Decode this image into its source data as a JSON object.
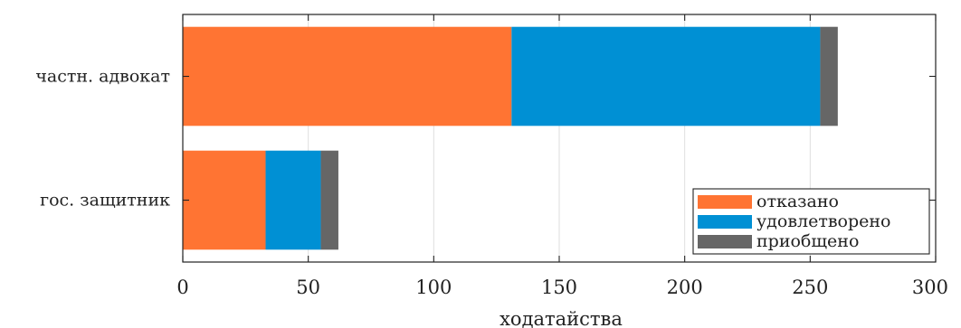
{
  "chart_data": {
    "type": "bar",
    "orientation": "horizontal",
    "stacked": true,
    "categories": [
      "частн. адвокат",
      "гос. защитник"
    ],
    "series": [
      {
        "name": "отказано",
        "color": "#ff7433",
        "values": [
          131,
          33
        ]
      },
      {
        "name": "удовлетворено",
        "color": "#0090d4",
        "values": [
          123,
          22
        ]
      },
      {
        "name": "приобщено",
        "color": "#666666",
        "values": [
          7,
          7
        ]
      }
    ],
    "xlabel": "ходатайства",
    "ylabel": "",
    "xlim": [
      0,
      300
    ],
    "xticks": [
      0,
      50,
      100,
      150,
      200,
      250,
      300
    ],
    "grid": true,
    "legend_position": "bottom-right"
  }
}
